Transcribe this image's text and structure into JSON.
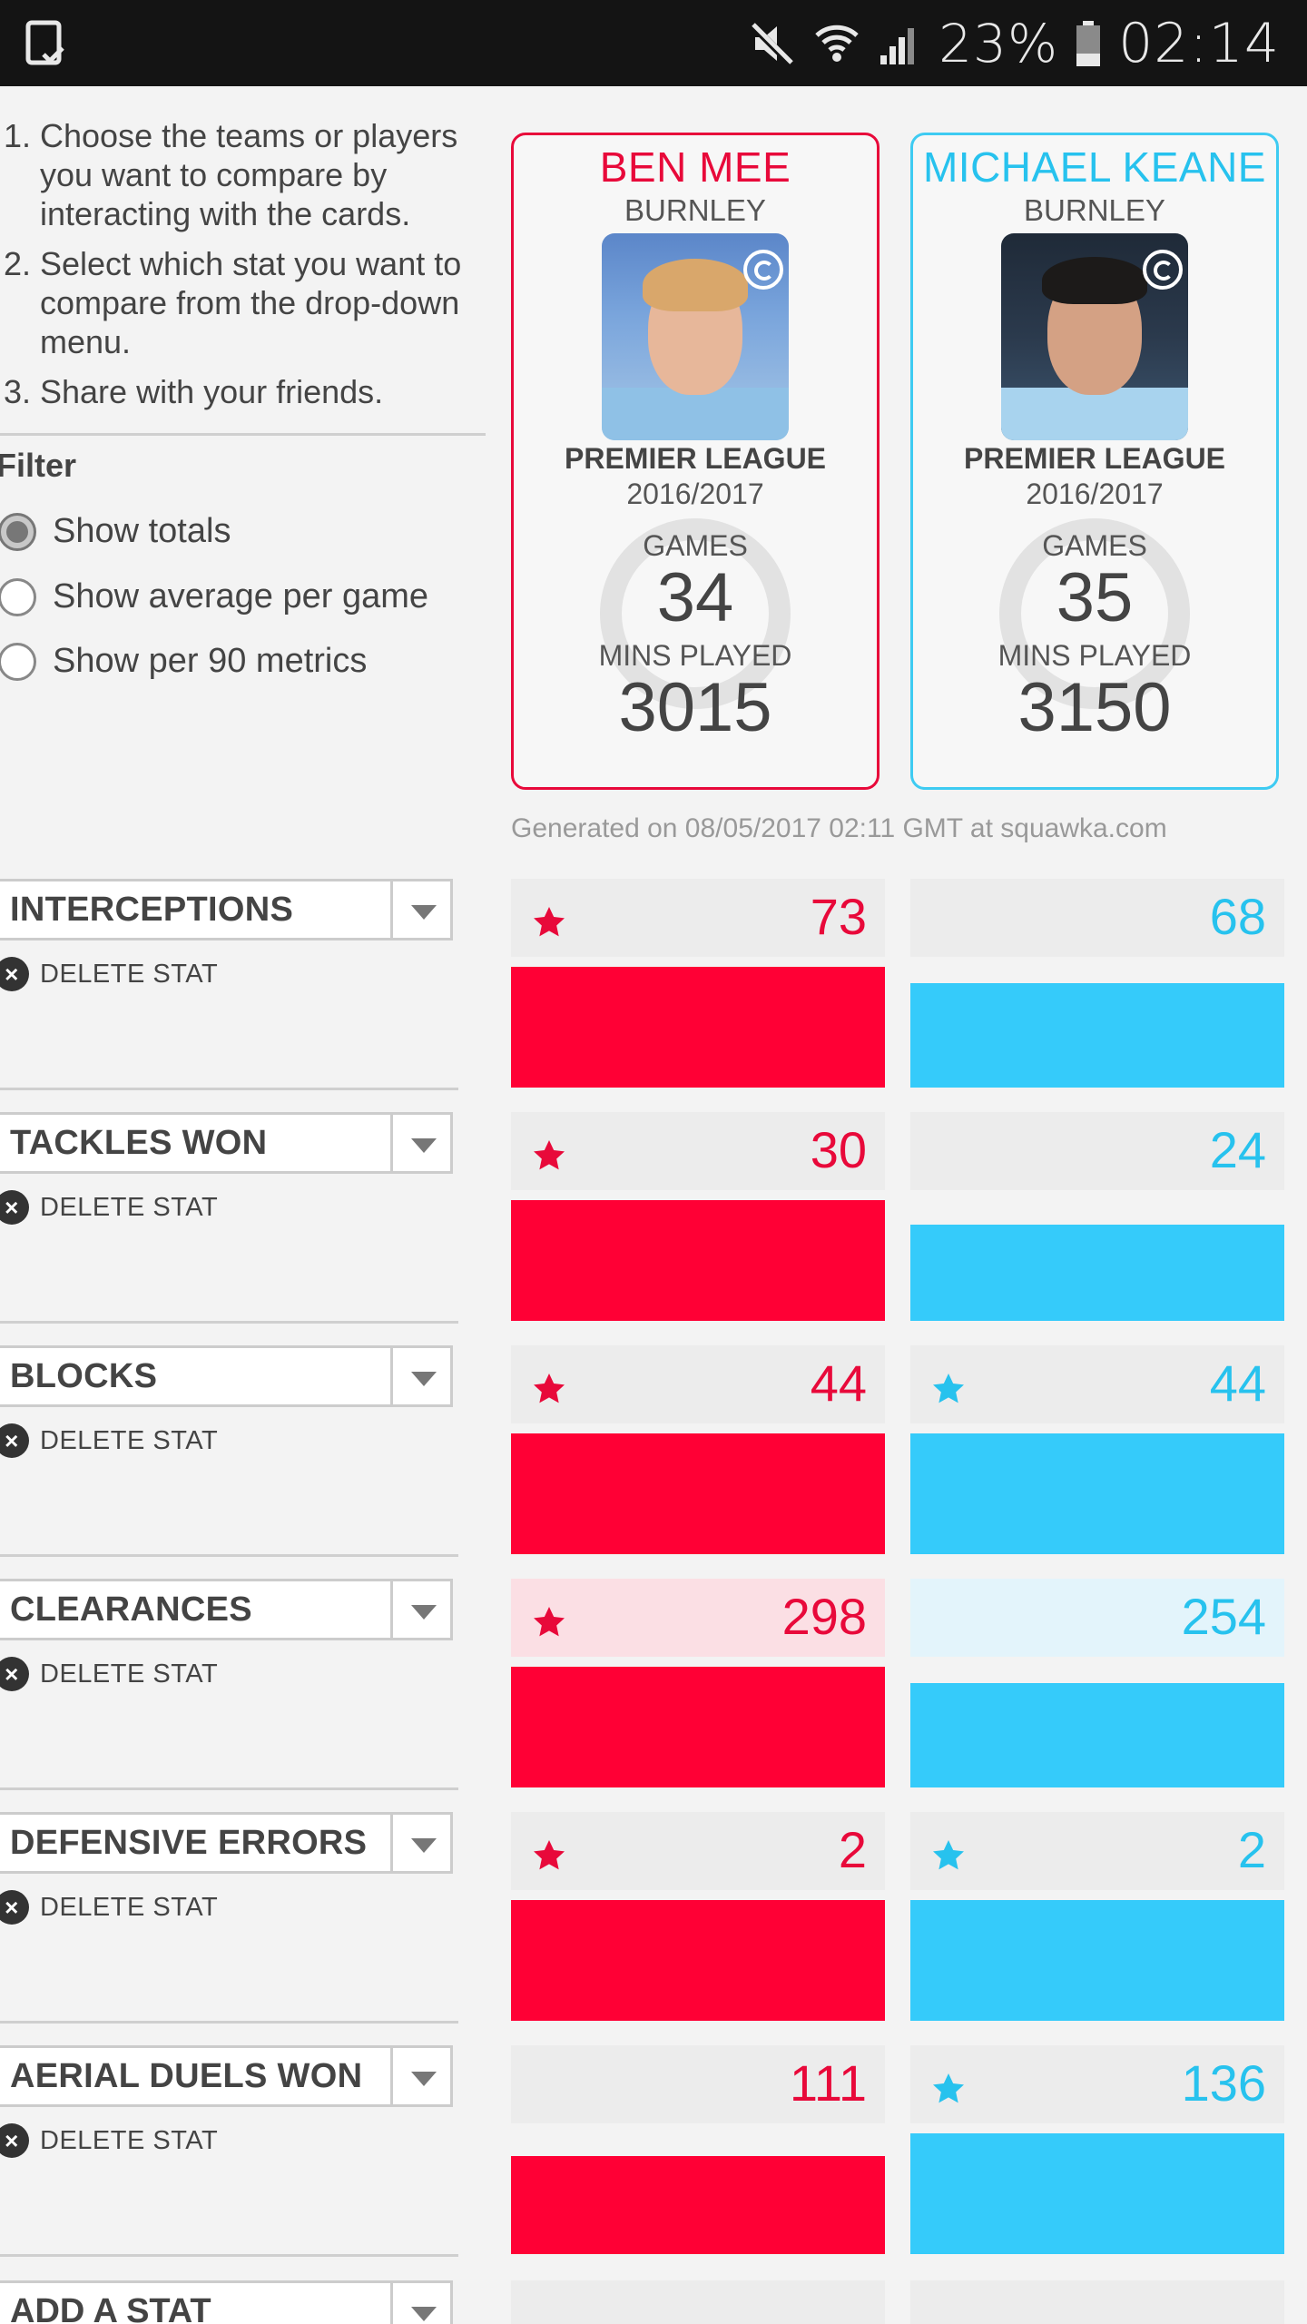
{
  "status_bar": {
    "battery_percent": "23%",
    "time": "02:14"
  },
  "instructions": [
    {
      "num": "1.",
      "text": "Choose the teams or players you want to compare by interacting with the cards."
    },
    {
      "num": "2.",
      "text": "Select which stat you want to compare from the drop-down menu."
    },
    {
      "num": "3.",
      "text": "Share with your friends."
    }
  ],
  "filter": {
    "title": "Filter",
    "options": [
      {
        "label": "Show totals",
        "selected": true
      },
      {
        "label": "Show average per game",
        "selected": false
      },
      {
        "label": "Show per 90 metrics",
        "selected": false
      }
    ]
  },
  "players": [
    {
      "name": "BEN MEE",
      "team": "BURNLEY",
      "league": "PREMIER LEAGUE",
      "season": "2016/2017",
      "games_label": "GAMES",
      "games": "34",
      "mins_label": "MINS PLAYED",
      "mins": "3015",
      "color": "#e8093a"
    },
    {
      "name": "MICHAEL KEANE",
      "team": "BURNLEY",
      "league": "PREMIER LEAGUE",
      "season": "2016/2017",
      "games_label": "GAMES",
      "games": "35",
      "mins_label": "MINS PLAYED",
      "mins": "3150",
      "color": "#27c2ee"
    }
  ],
  "generated_text": "Generated on 08/05/2017 02:11 GMT at squawka.com",
  "delete_label": "DELETE STAT",
  "stats": [
    {
      "name": "INTERCEPTIONS",
      "left": {
        "value": "73",
        "star": true,
        "fill": 0.58
      },
      "right": {
        "value": "68",
        "star": false,
        "fill": 0.5
      }
    },
    {
      "name": "TACKLES WON",
      "left": {
        "value": "30",
        "star": true,
        "fill": 0.58
      },
      "right": {
        "value": "24",
        "star": false,
        "fill": 0.46
      }
    },
    {
      "name": "BLOCKS",
      "left": {
        "value": "44",
        "star": true,
        "fill": 0.58
      },
      "right": {
        "value": "44",
        "star": true,
        "fill": 0.58
      }
    },
    {
      "name": "CLEARANCES",
      "left": {
        "value": "298",
        "star": true,
        "fill": 0.58,
        "highlight": true
      },
      "right": {
        "value": "254",
        "star": false,
        "fill": 0.5,
        "highlight": true
      }
    },
    {
      "name": "DEFENSIVE ERRORS",
      "left": {
        "value": "2",
        "star": true,
        "fill": 0.58
      },
      "right": {
        "value": "2",
        "star": true,
        "fill": 0.58
      }
    },
    {
      "name": "AERIAL DUELS WON",
      "left": {
        "value": "111",
        "star": false,
        "fill": 0.47
      },
      "right": {
        "value": "136",
        "star": true,
        "fill": 0.58
      }
    }
  ],
  "add_stat_label": "ADD A STAT"
}
